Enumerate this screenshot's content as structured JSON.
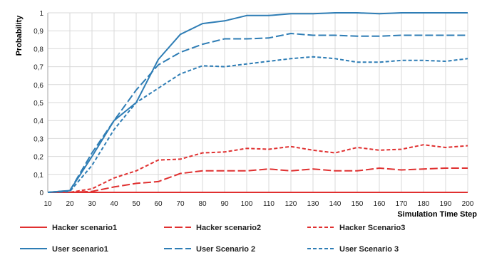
{
  "chart_data": {
    "type": "line",
    "title": "",
    "xlabel": "Simulation Time Step",
    "ylabel": "Probability",
    "x": [
      10,
      20,
      30,
      40,
      50,
      60,
      70,
      80,
      90,
      100,
      110,
      120,
      130,
      140,
      150,
      160,
      170,
      180,
      190,
      200
    ],
    "x_tick_labels": [
      "10",
      "20",
      "30",
      "40",
      "50",
      "60",
      "70",
      "80",
      "90",
      "100",
      "110",
      "120",
      "130",
      "140",
      "150",
      "160",
      "170",
      "180",
      "190",
      "200"
    ],
    "y_tick_labels": [
      "0",
      "0,1",
      "0,2",
      "0,3",
      "0,4",
      "0,5",
      "0,6",
      "0,7",
      "0,8",
      "0,9",
      "1"
    ],
    "xlim": [
      10,
      200
    ],
    "ylim": [
      0,
      1
    ],
    "grid": true,
    "legend_position": "bottom",
    "series": [
      {
        "name": "Hacker scenario1",
        "color": "#e03030",
        "dash": "solid",
        "values": [
          0,
          0,
          0,
          0,
          0,
          0,
          0,
          0,
          0,
          0,
          0,
          0,
          0,
          0,
          0,
          0,
          0,
          0,
          0,
          0
        ]
      },
      {
        "name": "Hacker scenario2",
        "color": "#e03030",
        "dash": "long",
        "values": [
          0,
          0,
          0.005,
          0.03,
          0.05,
          0.06,
          0.105,
          0.12,
          0.12,
          0.12,
          0.13,
          0.12,
          0.13,
          0.12,
          0.12,
          0.135,
          0.125,
          0.13,
          0.135,
          0.135
        ]
      },
      {
        "name": "Hacker Scenario3",
        "color": "#e03030",
        "dash": "short",
        "values": [
          0,
          0,
          0.02,
          0.08,
          0.12,
          0.18,
          0.185,
          0.22,
          0.225,
          0.245,
          0.24,
          0.255,
          0.235,
          0.22,
          0.25,
          0.235,
          0.24,
          0.265,
          0.25,
          0.26
        ]
      },
      {
        "name": "User scenario1",
        "color": "#2e7db5",
        "dash": "solid",
        "values": [
          0,
          0.01,
          0.2,
          0.4,
          0.5,
          0.74,
          0.88,
          0.94,
          0.955,
          0.985,
          0.985,
          0.995,
          0.995,
          1.0,
          1.0,
          0.995,
          1.0,
          1.0,
          1.0,
          1.0
        ]
      },
      {
        "name": "User Scenario 2",
        "color": "#2e7db5",
        "dash": "long",
        "values": [
          0,
          0.01,
          0.22,
          0.4,
          0.57,
          0.71,
          0.78,
          0.825,
          0.855,
          0.855,
          0.86,
          0.885,
          0.875,
          0.875,
          0.87,
          0.87,
          0.875,
          0.875,
          0.875,
          0.875
        ]
      },
      {
        "name": "User Scenario 3",
        "color": "#2e7db5",
        "dash": "short",
        "values": [
          0,
          0.005,
          0.15,
          0.35,
          0.5,
          0.58,
          0.66,
          0.705,
          0.7,
          0.715,
          0.73,
          0.745,
          0.755,
          0.745,
          0.725,
          0.725,
          0.735,
          0.735,
          0.73,
          0.745
        ]
      }
    ]
  }
}
